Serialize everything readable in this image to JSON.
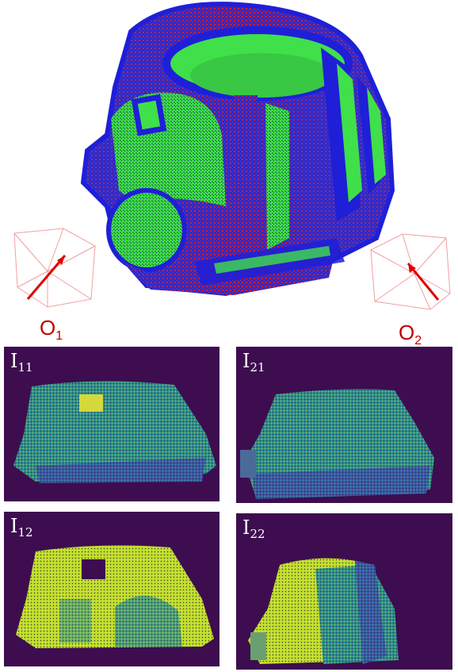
{
  "orientations": [
    {
      "label": "O",
      "sub": "1",
      "arrow_color": "#e00000"
    },
    {
      "label": "O",
      "sub": "2",
      "arrow_color": "#e00000"
    }
  ],
  "panels": [
    {
      "label": "I",
      "sub": "11"
    },
    {
      "label": "I",
      "sub": "21"
    },
    {
      "label": "I",
      "sub": "12"
    },
    {
      "label": "I",
      "sub": "22"
    }
  ],
  "colors": {
    "mesh_blue": "#1f1fd8",
    "mesh_green": "#3fe04a",
    "mesh_red": "#c8203a",
    "panel_bg": "#3d0d4f",
    "viridis_teal": "#3fb39a",
    "viridis_yellow": "#e6e62a"
  }
}
